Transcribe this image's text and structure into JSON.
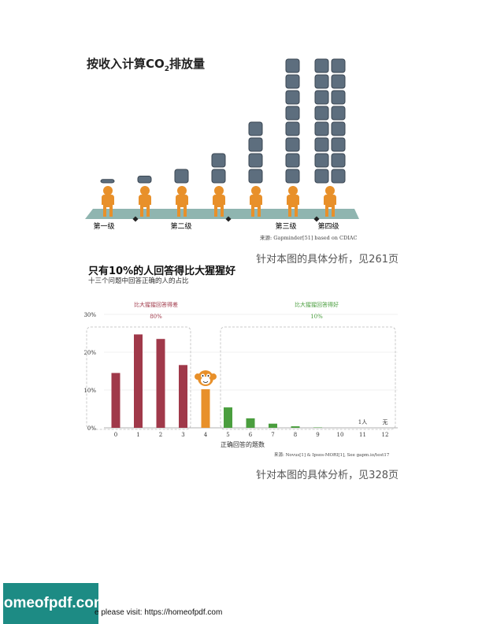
{
  "co2_chart": {
    "title_prefix": "按收入计算CO",
    "title_sub": "2",
    "title_suffix": "排放量",
    "level_labels": [
      "第一级",
      "第二级",
      "第三级",
      "第四级"
    ],
    "source": "来源: Gapminder[51] based on CDIAC"
  },
  "bar_chart": {
    "title": "只有10%的人回答得比大猩猩好",
    "subtitle": "十三个问题中回答正确的人的占比",
    "source": "来源: Novus[1] & Ipsos-MORI[1], See gapm.io/test17"
  },
  "references": {
    "ref1": "针对本图的具体分析，见261页",
    "ref2": "针对本图的具体分析，见328页"
  },
  "footer": {
    "logo": "homeofpdf.com",
    "text": "e please visit: https://homeofpdf.com"
  },
  "chart_data": [
    {
      "type": "bar",
      "categories": [
        "1",
        "2",
        "3",
        "4",
        "5",
        "6",
        "7",
        "8"
      ],
      "values": [
        0.25,
        0.5,
        1,
        2,
        4,
        8,
        8,
        8
      ],
      "columns_per_person": [
        1,
        1,
        1,
        1,
        1,
        1,
        1,
        2
      ],
      "groups": [
        {
          "label": "第一级",
          "from": 0,
          "to": 1
        },
        {
          "label": "第二级",
          "from": 2,
          "to": 3
        },
        {
          "label": "第三级",
          "from": 4,
          "to": 5
        },
        {
          "label": "第四级",
          "from": 6,
          "to": 7
        }
      ],
      "title": "按收入计算CO2排放量",
      "colors": {
        "block": "#5d6e7e",
        "person": "#e8902a",
        "ground": "#8fb5b0"
      }
    },
    {
      "type": "bar",
      "title": "只有10%的人回答得比大猩猩好",
      "subtitle": "十三个问题中回答正确的人的占比",
      "categories": [
        "0",
        "1",
        "2",
        "3",
        "4",
        "5",
        "6",
        "7",
        "8",
        "9",
        "10",
        "11",
        "12"
      ],
      "values": [
        14.5,
        24.7,
        23.5,
        16.6,
        10.2,
        5.4,
        2.5,
        1.1,
        0.4,
        0.1,
        0,
        0,
        0
      ],
      "value_labels": {
        "11": "1人",
        "12": "无"
      },
      "xlabel": "正确回答的题数",
      "ylim": [
        0,
        30
      ],
      "yticks": [
        "0%",
        "10%",
        "20%",
        "30%"
      ],
      "annotations": [
        {
          "label": "比大猩猩回答得差",
          "value": "80%",
          "from": 0,
          "to": 3,
          "color": "#a0394a"
        },
        {
          "label": "比大猩猩回答得好",
          "value": "10%",
          "from": 5,
          "to": 12,
          "color": "#4a9e3e"
        }
      ],
      "bar_colors": {
        "worse": "#a0394a",
        "chimp": "#e8902a",
        "better": "#4a9e3e"
      }
    }
  ]
}
